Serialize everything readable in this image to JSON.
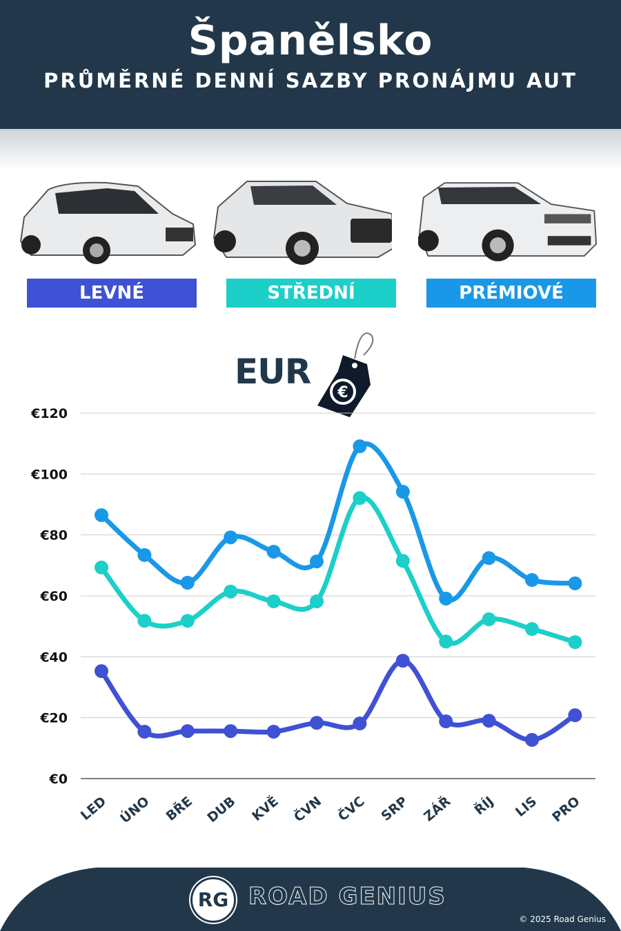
{
  "header": {
    "title": "Španělsko",
    "subtitle": "PRŮMĚRNÉ DENNÍ SAZBY PRONÁJMU AUT"
  },
  "categories_legend": [
    {
      "label": "LEVNÉ",
      "color": "#3f51d4"
    },
    {
      "label": "STŘEDNÍ",
      "color": "#1ccfc9"
    },
    {
      "label": "PRÉMIOVÉ",
      "color": "#1a98e8"
    }
  ],
  "currency": {
    "label": "EUR",
    "icon": "price-tag-euro-icon",
    "symbol": "€"
  },
  "chart_data": {
    "type": "line",
    "categories": [
      "LED",
      "ÚNO",
      "BŘE",
      "DUB",
      "KVĚ",
      "ČVN",
      "ČVC",
      "SRP",
      "ZÁŘ",
      "ŘÍJ",
      "LIS",
      "PRO"
    ],
    "ylim": [
      0,
      120
    ],
    "yticks": [
      "€0",
      "€20",
      "€40",
      "€60",
      "€80",
      "€100",
      "€120"
    ],
    "ytick_values": [
      0,
      20,
      40,
      60,
      80,
      100,
      120
    ],
    "grid": true,
    "series": [
      {
        "name": "PRÉMIOVÉ",
        "color": "#1a98e8",
        "values": [
          86.5,
          73.4,
          64.3,
          79.2,
          74.5,
          71.3,
          109.1,
          94.2,
          59.1,
          72.4,
          65.2,
          64.1
        ]
      },
      {
        "name": "STŘEDNÍ",
        "color": "#1ccfc9",
        "values": [
          69.3,
          51.8,
          51.8,
          61.4,
          58.2,
          58.2,
          92.1,
          71.5,
          45.0,
          52.3,
          49.1,
          44.8
        ]
      },
      {
        "name": "LEVNÉ",
        "color": "#3f51d4",
        "values": [
          35.3,
          15.4,
          15.6,
          15.6,
          15.4,
          18.3,
          18.1,
          38.7,
          18.8,
          19.0,
          12.7,
          20.8
        ]
      }
    ]
  },
  "footer": {
    "logo": "RG",
    "brand": "ROAD GENIUS",
    "copyright": "© 2025 Road Genius"
  }
}
